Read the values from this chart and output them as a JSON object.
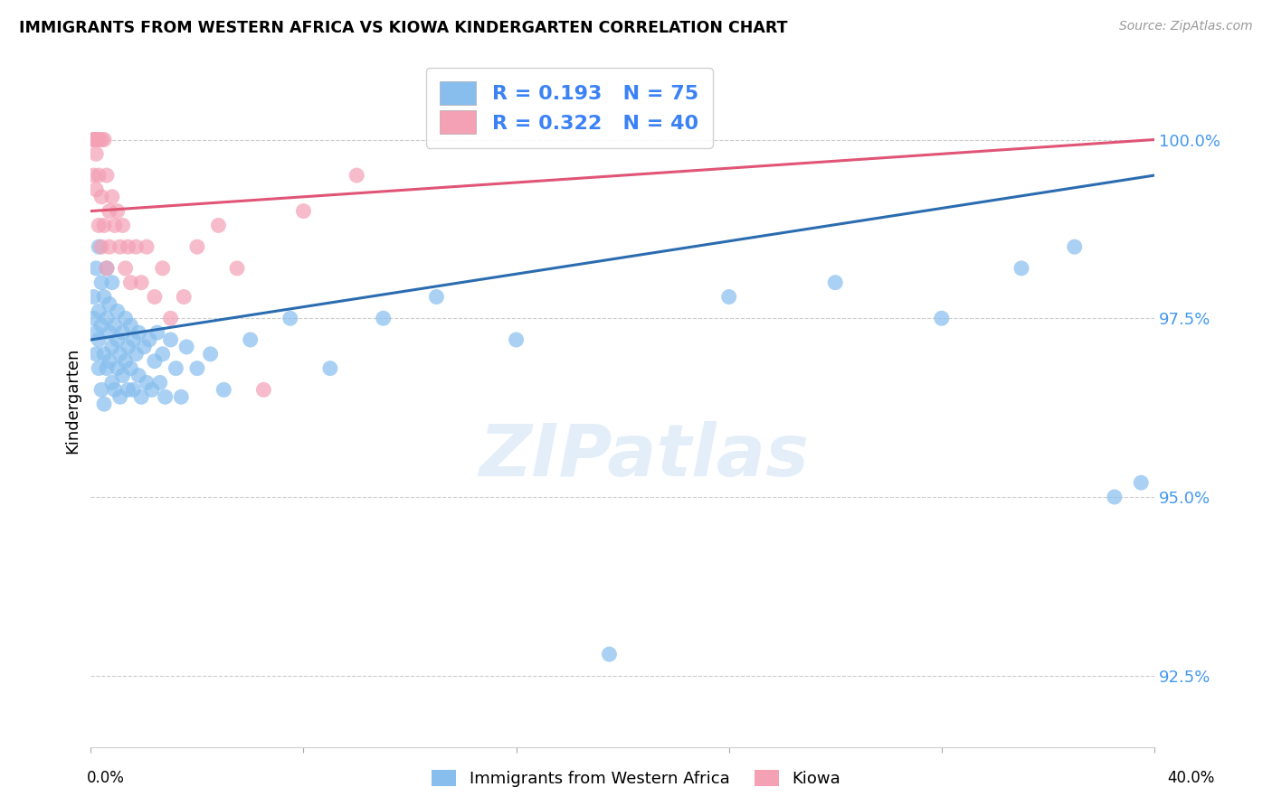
{
  "title": "IMMIGRANTS FROM WESTERN AFRICA VS KIOWA KINDERGARTEN CORRELATION CHART",
  "source": "Source: ZipAtlas.com",
  "ylabel": "Kindergarten",
  "yticks": [
    92.5,
    95.0,
    97.5,
    100.0
  ],
  "ytick_labels": [
    "92.5%",
    "95.0%",
    "97.5%",
    "100.0%"
  ],
  "xlim": [
    0.0,
    0.4
  ],
  "ylim": [
    91.5,
    101.2
  ],
  "blue_R": 0.193,
  "blue_N": 75,
  "pink_R": 0.322,
  "pink_N": 40,
  "blue_color": "#87BEEE",
  "pink_color": "#F4A0B5",
  "blue_line_color": "#2B6CB0",
  "pink_line_color": "#E05575",
  "legend_R_color": "#3B82F6",
  "watermark": "ZIPatlas",
  "blue_line_x0": 0.0,
  "blue_line_y0": 97.2,
  "blue_line_x1": 0.4,
  "blue_line_y1": 99.5,
  "pink_line_x0": 0.0,
  "pink_line_y0": 99.0,
  "pink_line_x1": 0.4,
  "pink_line_y1": 100.0,
  "blue_scatter_x": [
    0.001,
    0.001,
    0.002,
    0.002,
    0.002,
    0.003,
    0.003,
    0.003,
    0.003,
    0.004,
    0.004,
    0.004,
    0.005,
    0.005,
    0.005,
    0.006,
    0.006,
    0.006,
    0.007,
    0.007,
    0.007,
    0.008,
    0.008,
    0.008,
    0.009,
    0.009,
    0.01,
    0.01,
    0.01,
    0.011,
    0.011,
    0.012,
    0.012,
    0.013,
    0.013,
    0.014,
    0.014,
    0.015,
    0.015,
    0.016,
    0.016,
    0.017,
    0.018,
    0.018,
    0.019,
    0.02,
    0.021,
    0.022,
    0.023,
    0.024,
    0.025,
    0.026,
    0.027,
    0.028,
    0.03,
    0.032,
    0.034,
    0.036,
    0.04,
    0.045,
    0.05,
    0.06,
    0.075,
    0.09,
    0.11,
    0.13,
    0.16,
    0.195,
    0.24,
    0.28,
    0.32,
    0.35,
    0.37,
    0.385,
    0.395
  ],
  "blue_scatter_y": [
    97.5,
    97.8,
    98.2,
    97.3,
    97.0,
    98.5,
    97.2,
    96.8,
    97.6,
    98.0,
    97.4,
    96.5,
    97.8,
    97.0,
    96.3,
    98.2,
    97.5,
    96.8,
    97.3,
    96.9,
    97.7,
    97.1,
    96.6,
    98.0,
    97.4,
    96.5,
    97.2,
    96.8,
    97.6,
    97.0,
    96.4,
    97.3,
    96.7,
    97.5,
    96.9,
    97.1,
    96.5,
    97.4,
    96.8,
    97.2,
    96.5,
    97.0,
    96.7,
    97.3,
    96.4,
    97.1,
    96.6,
    97.2,
    96.5,
    96.9,
    97.3,
    96.6,
    97.0,
    96.4,
    97.2,
    96.8,
    96.4,
    97.1,
    96.8,
    97.0,
    96.5,
    97.2,
    97.5,
    96.8,
    97.5,
    97.8,
    97.2,
    92.8,
    97.8,
    98.0,
    97.5,
    98.2,
    98.5,
    95.0,
    95.2
  ],
  "pink_scatter_x": [
    0.001,
    0.001,
    0.001,
    0.002,
    0.002,
    0.002,
    0.002,
    0.003,
    0.003,
    0.003,
    0.004,
    0.004,
    0.004,
    0.005,
    0.005,
    0.006,
    0.006,
    0.007,
    0.007,
    0.008,
    0.009,
    0.01,
    0.011,
    0.012,
    0.013,
    0.014,
    0.015,
    0.017,
    0.019,
    0.021,
    0.024,
    0.027,
    0.03,
    0.035,
    0.04,
    0.048,
    0.055,
    0.065,
    0.08,
    0.1
  ],
  "pink_scatter_y": [
    100.0,
    100.0,
    99.5,
    100.0,
    100.0,
    99.8,
    99.3,
    100.0,
    99.5,
    98.8,
    100.0,
    99.2,
    98.5,
    100.0,
    98.8,
    99.5,
    98.2,
    99.0,
    98.5,
    99.2,
    98.8,
    99.0,
    98.5,
    98.8,
    98.2,
    98.5,
    98.0,
    98.5,
    98.0,
    98.5,
    97.8,
    98.2,
    97.5,
    97.8,
    98.5,
    98.8,
    98.2,
    96.5,
    99.0,
    99.5
  ]
}
